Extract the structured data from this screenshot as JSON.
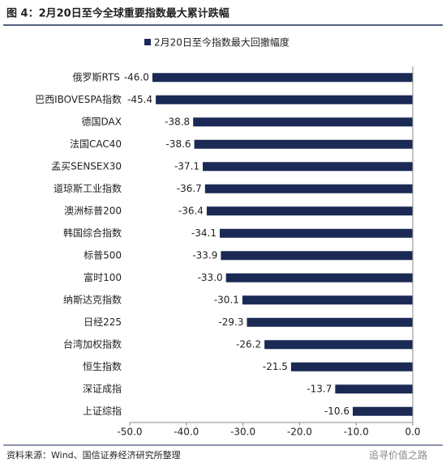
{
  "chart_data": {
    "type": "barh",
    "title": "图 4：2月20日至今全球重要指数最大累计跌幅",
    "legend_label": "2月20日至今指数最大回撤幅度",
    "source": "资料来源：Wind、国信证券经济研究所整理",
    "watermark": "追寻价值之路",
    "color": "#1b2a55",
    "categories": [
      "俄罗斯RTS",
      "巴西IBOVESPA指数",
      "德国DAX",
      "法国CAC40",
      "孟买SENSEX30",
      "道琼斯工业指数",
      "澳洲标普200",
      "韩国综合指数",
      "标普500",
      "富时100",
      "纳斯达克指数",
      "日经225",
      "台湾加权指数",
      "恒生指数",
      "深证成指",
      "上证综指"
    ],
    "values": [
      -46.0,
      -45.4,
      -38.8,
      -38.6,
      -37.1,
      -36.7,
      -36.4,
      -34.1,
      -33.9,
      -33.0,
      -30.1,
      -29.3,
      -26.2,
      -21.5,
      -13.7,
      -10.6
    ],
    "value_labels": [
      "-46.0",
      "-45.4",
      "-38.8",
      "-38.6",
      "-37.1",
      "-36.7",
      "-36.4",
      "-34.1",
      "-33.9",
      "-33.0",
      "-30.1",
      "-29.3",
      "-26.2",
      "-21.5",
      "-13.7",
      "-10.6"
    ],
    "xlim": [
      -50,
      0
    ],
    "xticks": [
      {
        "value": -50,
        "label": "-50.0"
      },
      {
        "value": -40,
        "label": "-40.0"
      },
      {
        "value": -30,
        "label": "-30.0"
      },
      {
        "value": -20,
        "label": "-20.0"
      },
      {
        "value": -10,
        "label": "-10.0"
      },
      {
        "value": 0,
        "label": "0.0"
      }
    ]
  }
}
